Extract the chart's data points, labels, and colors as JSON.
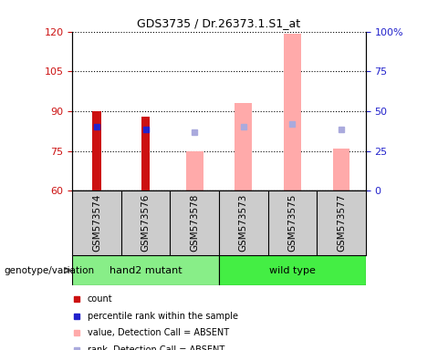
{
  "title": "GDS3735 / Dr.26373.1.S1_at",
  "samples": [
    "GSM573574",
    "GSM573576",
    "GSM573578",
    "GSM573573",
    "GSM573575",
    "GSM573577"
  ],
  "group_labels": [
    "hand2 mutant",
    "wild type"
  ],
  "ylim_left": [
    60,
    120
  ],
  "ylim_right": [
    0,
    100
  ],
  "yticks_left": [
    60,
    75,
    90,
    105,
    120
  ],
  "yticks_right": [
    0,
    25,
    50,
    75,
    100
  ],
  "red_bars": {
    "GSM573574": 90,
    "GSM573576": 88
  },
  "pink_bars": {
    "GSM573578": 75,
    "GSM573573": 93,
    "GSM573575": 119,
    "GSM573577": 76
  },
  "blue_dots": {
    "GSM573574": 84,
    "GSM573576": 83
  },
  "lightblue_dots": {
    "GSM573578": 82,
    "GSM573573": 84,
    "GSM573575": 85,
    "GSM573577": 83
  },
  "red_bar_color": "#cc1111",
  "pink_bar_color": "#ffaaaa",
  "blue_dot_color": "#2222cc",
  "lightblue_dot_color": "#aaaadd",
  "group_color_mutant": "#88ee88",
  "group_color_wild": "#44ee44",
  "background_color": "#cccccc",
  "left_axis_color": "#cc1111",
  "right_axis_color": "#2222cc",
  "legend_labels": [
    "count",
    "percentile rank within the sample",
    "value, Detection Call = ABSENT",
    "rank, Detection Call = ABSENT"
  ]
}
